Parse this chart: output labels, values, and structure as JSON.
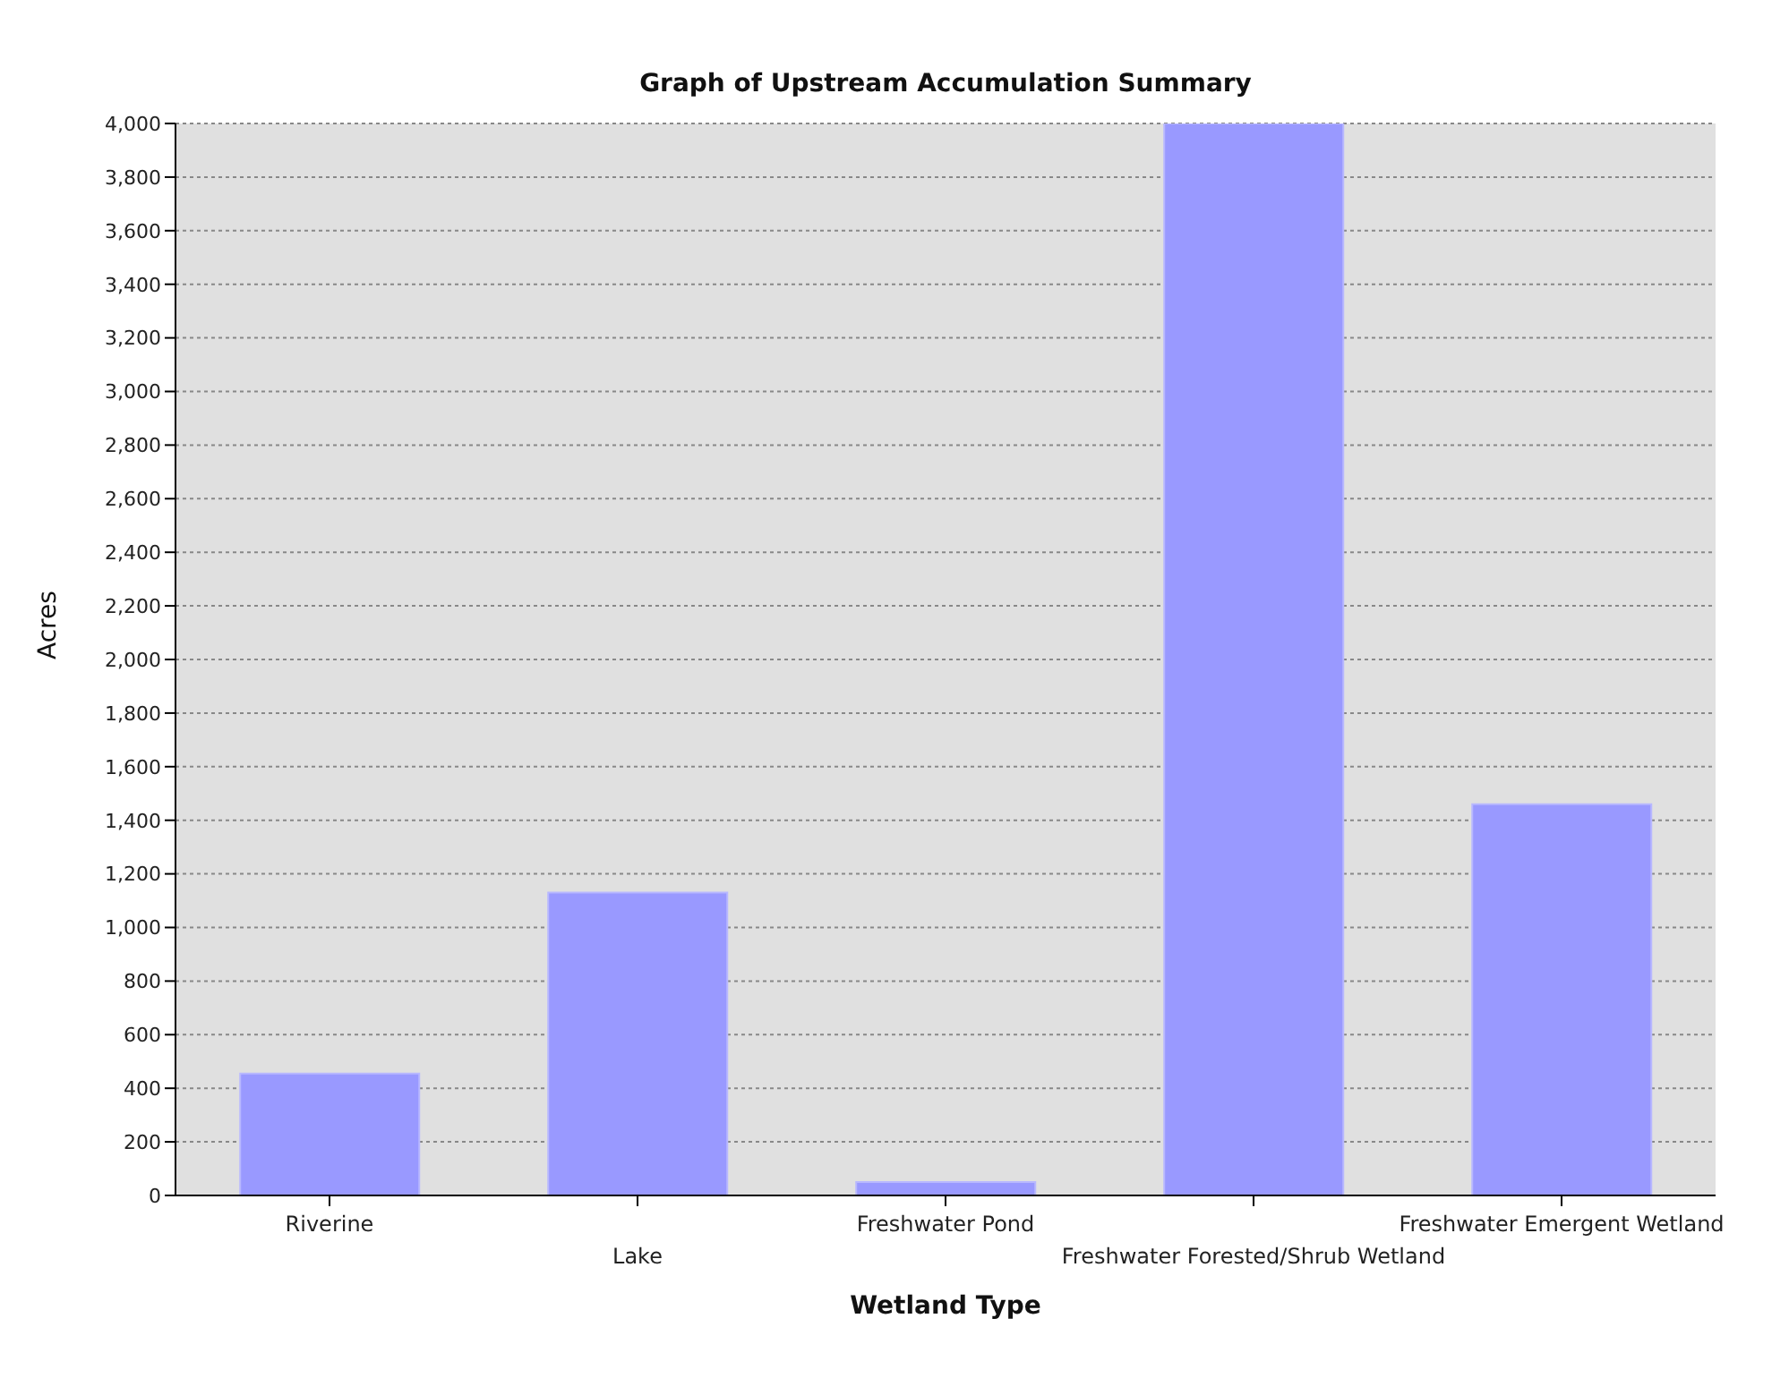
{
  "chart_data": {
    "type": "bar",
    "title": "Graph of Upstream Accumulation Summary",
    "xlabel": "Wetland Type",
    "ylabel": "Acres",
    "categories": [
      "Riverine",
      "Lake",
      "Freshwater Pond",
      "Freshwater Forested/Shrub Wetland",
      "Freshwater Emergent Wetland"
    ],
    "values": [
      455,
      1130,
      50,
      4000,
      1460
    ],
    "color": "#9999ff",
    "ylim": [
      0,
      4000
    ],
    "yticks": [
      0,
      200,
      400,
      600,
      800,
      {
        "value": 1000,
        "label": "1,000"
      },
      {
        "value": 1200,
        "label": "1,200"
      },
      {
        "value": 1400,
        "label": "1,400"
      },
      {
        "value": 1600,
        "label": "1,600"
      },
      {
        "value": 1800,
        "label": "1,800"
      },
      {
        "value": 2000,
        "label": "2,000"
      },
      {
        "value": 2200,
        "label": "2,200"
      },
      {
        "value": 2400,
        "label": "2,400"
      },
      {
        "value": 2600,
        "label": "2,600"
      },
      {
        "value": 2800,
        "label": "2,800"
      },
      {
        "value": 3000,
        "label": "3,000"
      },
      {
        "value": 3200,
        "label": "3,200"
      },
      {
        "value": 3400,
        "label": "3,400"
      },
      {
        "value": 3600,
        "label": "3,600"
      },
      {
        "value": 3800,
        "label": "3,800"
      },
      {
        "value": 4000,
        "label": "4,000"
      }
    ],
    "grid": "y"
  }
}
